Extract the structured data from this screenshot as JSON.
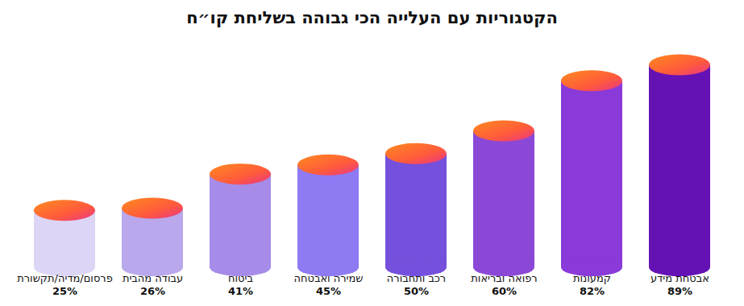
{
  "chart_data": {
    "type": "bar",
    "title": "הקטגוריות עם העלייה הכי גבוהה בשליחת קו״ח",
    "categories": [
      "פרסום/מדיה/תקשורת",
      "עבודה מהבית",
      "ביטוח",
      "שמירה ואבטחה",
      "רכב ותחבורה",
      "רפואה ובריאות",
      "קמעונות",
      "אבטחת מידע"
    ],
    "values": [
      25,
      26,
      41,
      45,
      50,
      60,
      82,
      89
    ],
    "value_labels": [
      "25%",
      "26%",
      "41%",
      "45%",
      "50%",
      "60%",
      "82%",
      "89%"
    ],
    "colors": [
      "#dcd5f5",
      "#b9a8ec",
      "#a68ce8",
      "#8e7af2",
      "#7550dc",
      "#8b48d6",
      "#8a3ad8",
      "#6512b5"
    ],
    "ylim": [
      0,
      92
    ],
    "data_labels": true,
    "tick_labels": "x"
  }
}
